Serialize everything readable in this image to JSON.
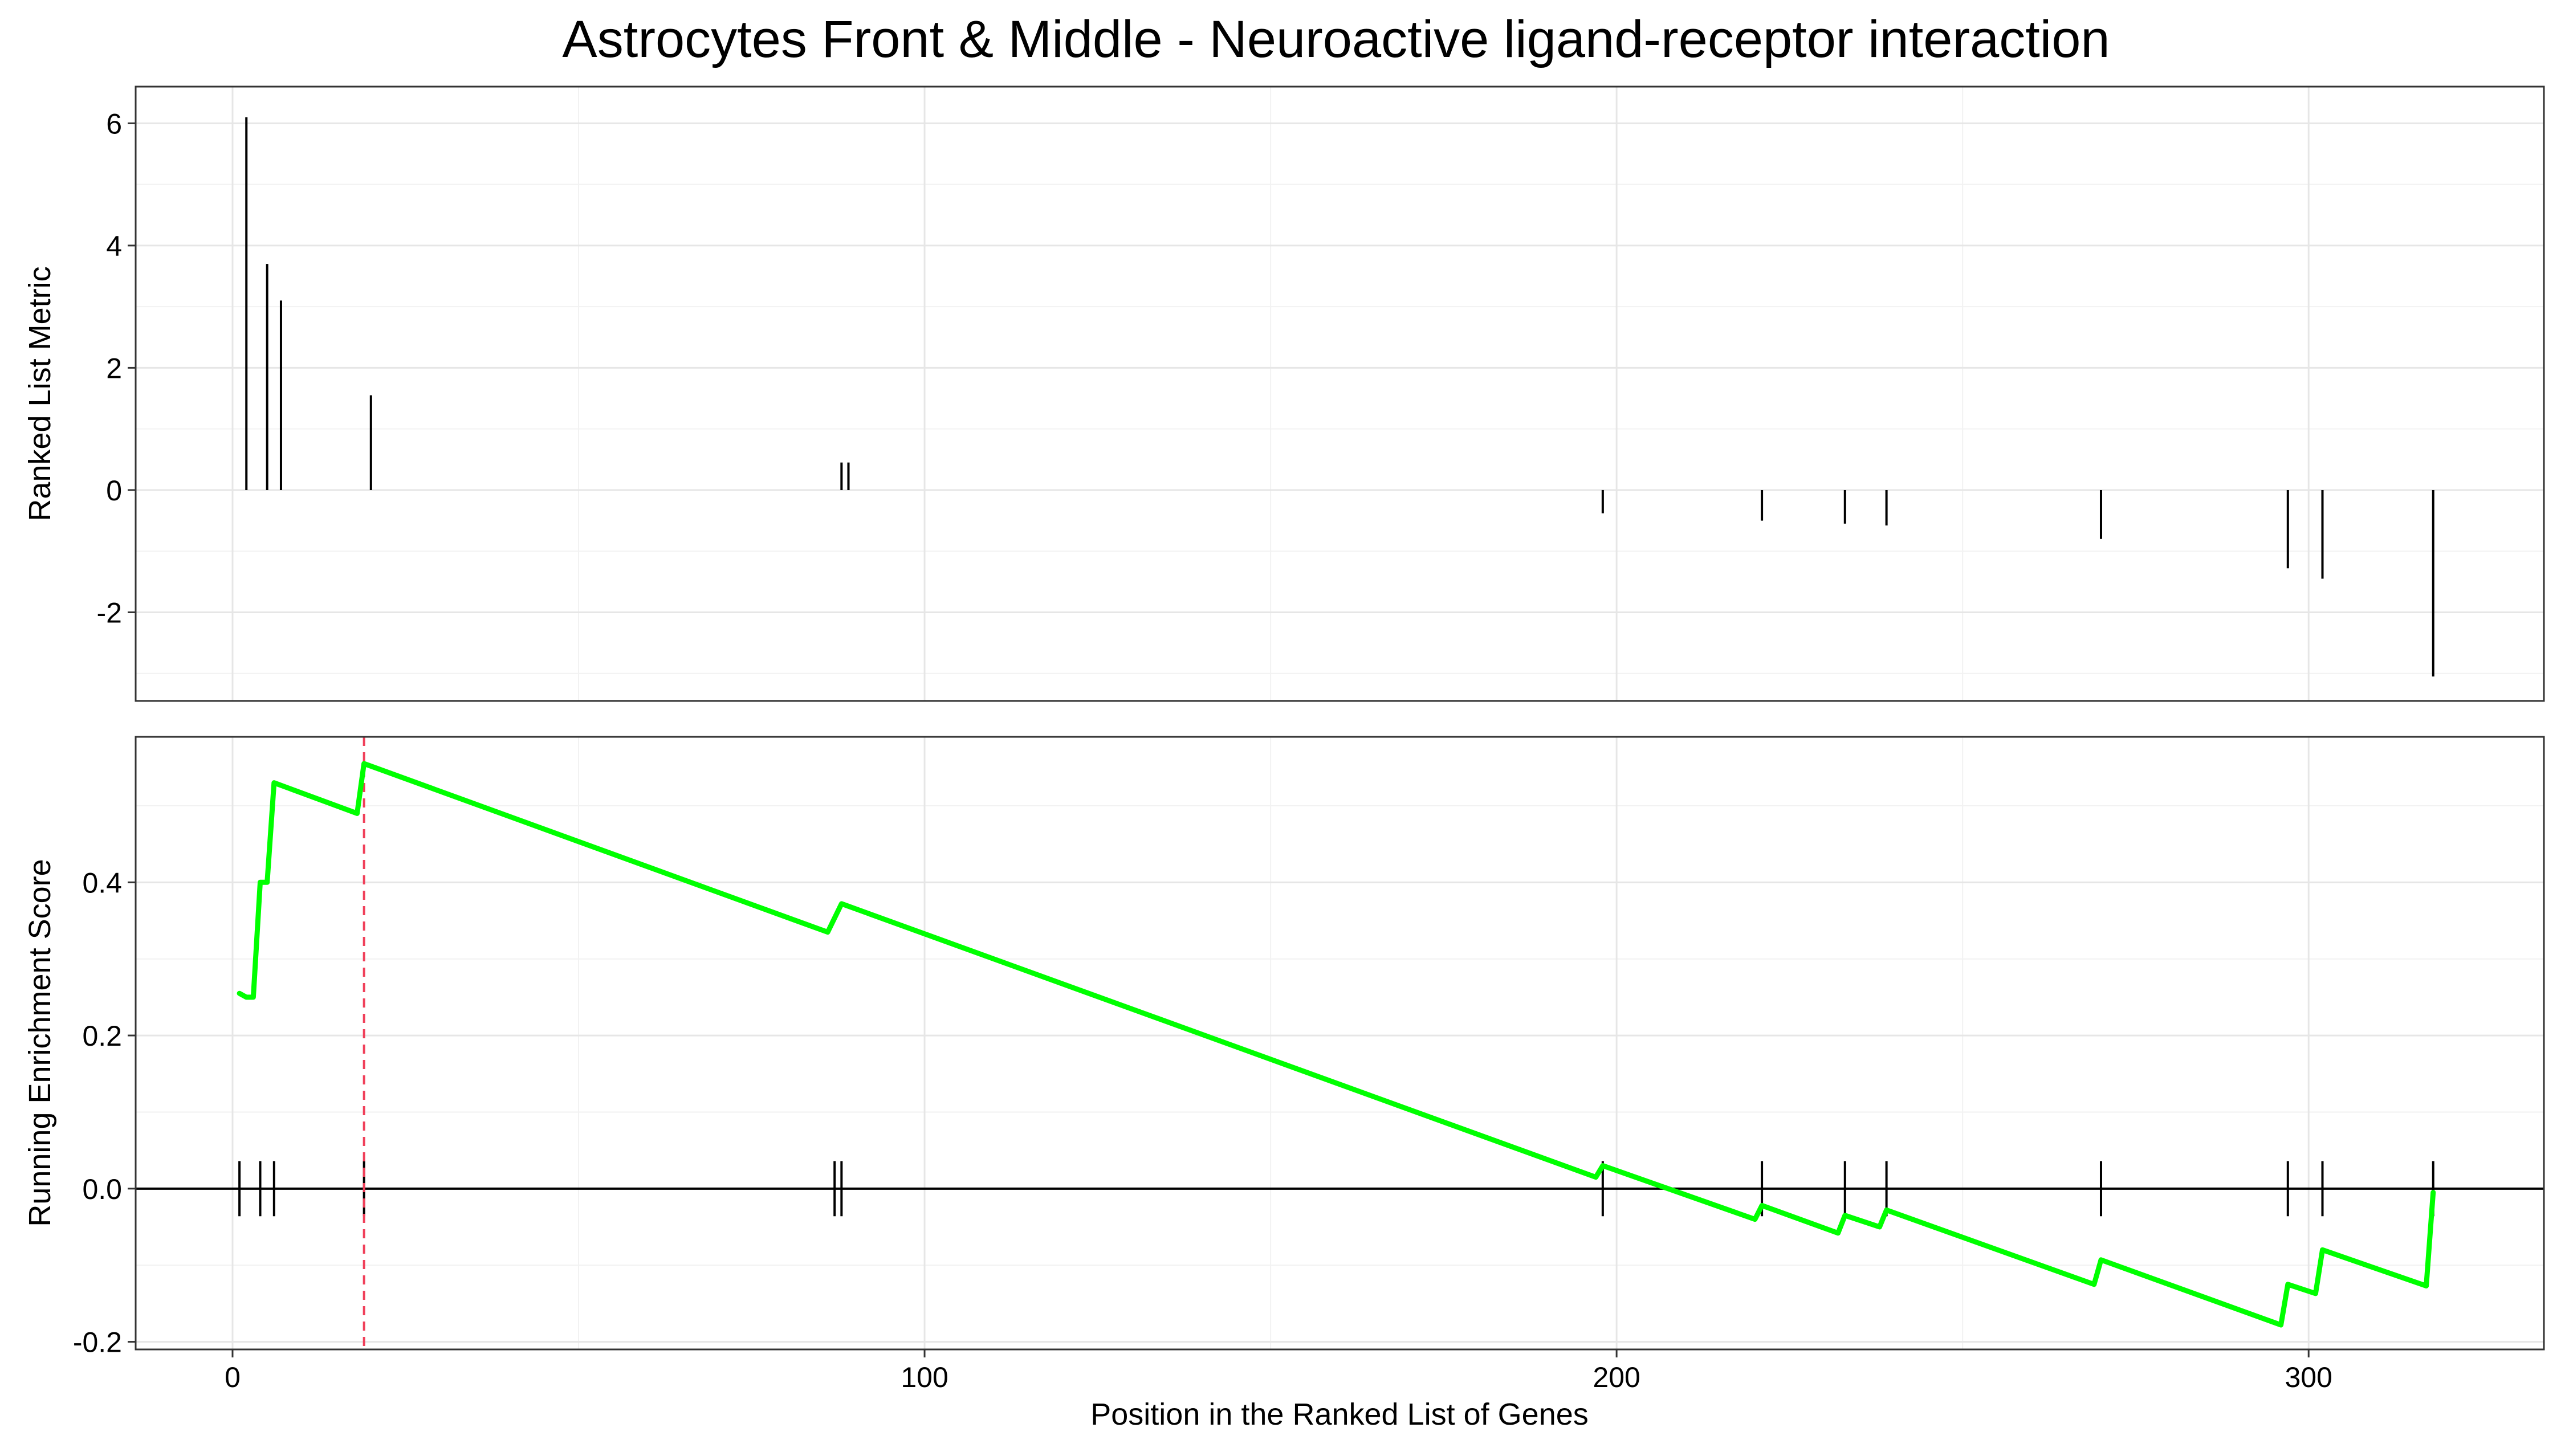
{
  "chart_data": {
    "type": "line",
    "title": "Astrocytes Front & Middle - Neuroactive ligand-receptor interaction",
    "xlabel": "Position in the Ranked List of Genes",
    "xlim": [
      -14,
      334
    ],
    "x_ticks": [
      0,
      100,
      200,
      300
    ],
    "x_tick_labels": [
      "0",
      "100",
      "200",
      "300"
    ],
    "grid": true,
    "hit_positions": [
      1,
      4,
      6,
      19,
      87,
      88,
      198,
      221,
      233,
      239,
      270,
      297,
      302,
      318
    ],
    "leading_edge_position": 19,
    "panels": [
      {
        "name": "ranked-metric",
        "ylabel": "Ranked List Metric",
        "ylim": [
          -3.45,
          6.6
        ],
        "y_ticks": [
          -2,
          0,
          2,
          4,
          6
        ],
        "y_tick_labels": [
          "-2",
          "0",
          "2",
          "4",
          "6"
        ],
        "bars": {
          "x": [
            2,
            5,
            7,
            20,
            88,
            89,
            198,
            221,
            233,
            239,
            270,
            297,
            302,
            318
          ],
          "values": [
            6.1,
            3.7,
            3.1,
            1.55,
            0.45,
            0.45,
            -0.38,
            -0.5,
            -0.55,
            -0.58,
            -0.8,
            -1.28,
            -1.45,
            -3.05
          ]
        }
      },
      {
        "name": "running-enrichment-score",
        "ylabel": "Running Enrichment Score",
        "ylim": [
          -0.21,
          0.59
        ],
        "y_ticks": [
          -0.2,
          0.0,
          0.2,
          0.4
        ],
        "y_tick_labels": [
          "-0.2",
          "0.0",
          "0.2",
          "0.4"
        ],
        "series": [
          {
            "color": "#00ff00",
            "x": [
              1,
              2,
              3,
              4,
              5,
              6,
              18,
              19,
              86,
              88,
              197,
              198,
              220,
              221,
              232,
              233,
              238,
              239,
              269,
              270,
              296,
              297,
              301,
              302,
              317,
              318
            ],
            "y": [
              0.255,
              0.25,
              0.25,
              0.4,
              0.4,
              0.53,
              0.49,
              0.555,
              0.335,
              0.372,
              0.015,
              0.03,
              -0.04,
              -0.022,
              -0.058,
              -0.035,
              -0.05,
              -0.028,
              -0.125,
              -0.093,
              -0.178,
              -0.125,
              -0.137,
              -0.08,
              -0.127,
              -0.005
            ]
          }
        ]
      }
    ]
  }
}
